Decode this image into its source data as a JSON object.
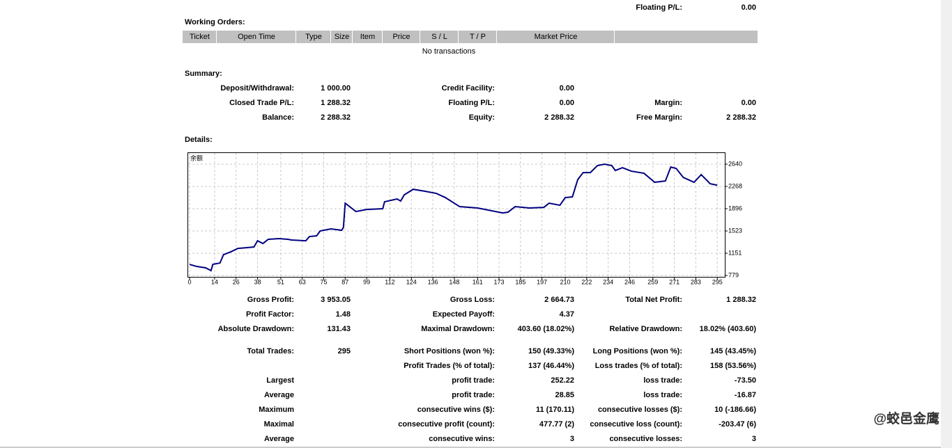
{
  "top": [
    "Floating P/L:",
    "0.00"
  ],
  "working_orders": {
    "title": "Working Orders:",
    "columns": [
      "Ticket",
      "Open Time",
      "Type",
      "Size",
      "Item",
      "Price",
      "S / L",
      "T / P",
      "Market Price"
    ],
    "empty": "No transactions"
  },
  "summary": {
    "title": "Summary:",
    "rows": [
      [
        "Deposit/Withdrawal:",
        "1 000.00",
        "Credit Facility:",
        "0.00",
        null,
        null
      ],
      [
        "Closed Trade P/L:",
        "1 288.32",
        "Floating P/L:",
        "0.00",
        "Margin:",
        "0.00"
      ],
      [
        "Balance:",
        "2 288.32",
        "Equity:",
        "2 288.32",
        "Free Margin:",
        "2 288.32"
      ]
    ]
  },
  "details_title": "Details:",
  "chart_data": {
    "type": "line",
    "x": [
      0,
      4,
      9,
      12,
      13,
      17,
      19,
      23,
      27,
      32,
      36,
      38,
      41,
      44,
      50,
      55,
      57,
      65,
      67,
      71,
      73,
      79,
      85,
      86,
      87,
      93,
      99,
      108,
      109,
      116,
      118,
      120,
      125,
      132,
      138,
      143,
      151,
      161,
      167,
      175,
      178,
      182,
      190,
      198,
      201,
      207,
      210,
      214,
      217,
      220,
      224,
      228,
      232,
      236,
      238,
      242,
      247,
      254,
      260,
      266,
      269,
      272,
      276,
      282,
      286,
      291,
      295
    ],
    "series": [
      {
        "name": "余额",
        "color": "#000080",
        "values": [
          965,
          930,
          907,
          860,
          965,
          988,
          1128,
          1174,
          1232,
          1244,
          1256,
          1360,
          1314,
          1384,
          1395,
          1384,
          1372,
          1360,
          1430,
          1442,
          1523,
          1558,
          1535,
          1581,
          1988,
          1848,
          1883,
          1895,
          2011,
          2058,
          2023,
          2127,
          2220,
          2185,
          2151,
          2081,
          1930,
          1907,
          1872,
          1825,
          1837,
          1930,
          1907,
          1918,
          1988,
          1953,
          2081,
          2093,
          2383,
          2499,
          2499,
          2616,
          2639,
          2616,
          2534,
          2581,
          2523,
          2488,
          2337,
          2360,
          2592,
          2569,
          2418,
          2337,
          2465,
          2313,
          2288
        ]
      }
    ],
    "xlim": [
      0,
      299
    ],
    "xticks": [
      0,
      14,
      26,
      38,
      51,
      63,
      75,
      87,
      99,
      112,
      124,
      136,
      148,
      161,
      173,
      185,
      197,
      210,
      222,
      234,
      246,
      259,
      271,
      283,
      295
    ],
    "ylim": [
      756,
      2826
    ],
    "yticks": [
      779,
      1151,
      1523,
      1896,
      2268,
      2640
    ],
    "grid": true
  },
  "stats": [
    [
      "Gross Profit:",
      "3 953.05",
      "Gross Loss:",
      "2 664.73",
      "Total Net Profit:",
      "1 288.32"
    ],
    [
      "Profit Factor:",
      "1.48",
      "Expected Payoff:",
      "4.37",
      null,
      null
    ],
    [
      "Absolute Drawdown:",
      "131.43",
      "Maximal Drawdown:",
      "403.60 (18.02%)",
      "Relative Drawdown:",
      "18.02% (403.60)"
    ],
    [
      "Total Trades:",
      "295",
      "Short Positions (won %):",
      "150 (49.33%)",
      "Long Positions (won %):",
      "145 (43.45%)"
    ],
    [
      null,
      null,
      "Profit Trades (% of total):",
      "137 (46.44%)",
      "Loss trades (% of total):",
      "158 (53.56%)"
    ],
    [
      "Largest",
      null,
      "profit trade:",
      "252.22",
      "loss trade:",
      "-73.50"
    ],
    [
      "Average",
      null,
      "profit trade:",
      "28.85",
      "loss trade:",
      "-16.87"
    ],
    [
      "Maximum",
      null,
      "consecutive wins ($):",
      "11 (170.11)",
      "consecutive losses ($):",
      "10 (-186.66)"
    ],
    [
      "Maximal",
      null,
      "consecutive profit (count):",
      "477.77 (2)",
      "consecutive loss (count):",
      "-203.47 (6)"
    ],
    [
      "Average",
      null,
      "consecutive wins:",
      "3",
      "consecutive losses:",
      "3"
    ]
  ],
  "watermark": "@蛟邑金鹰"
}
